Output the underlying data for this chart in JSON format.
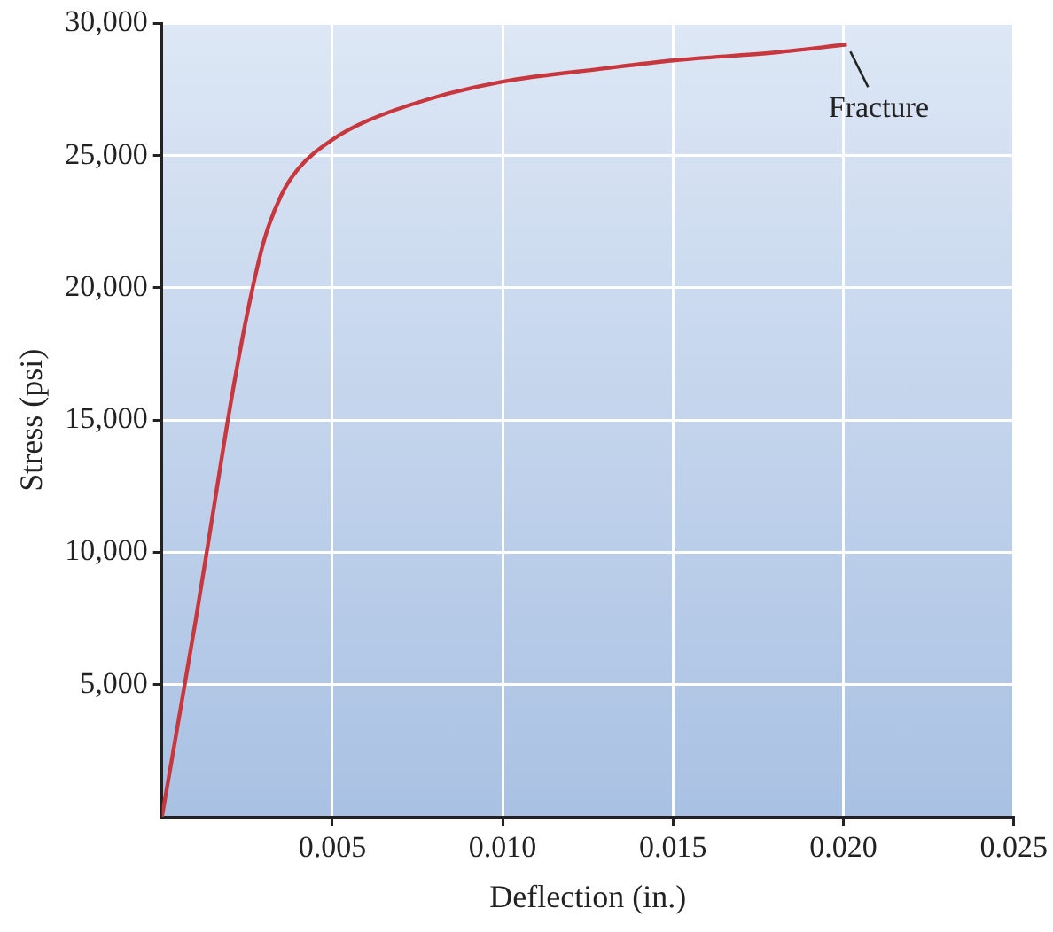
{
  "chart_data": {
    "type": "line",
    "xlabel": "Deflection (in.)",
    "ylabel": "Stress (psi)",
    "x": [
      0,
      0.001,
      0.0015,
      0.002,
      0.0025,
      0.003,
      0.0035,
      0.004,
      0.005,
      0.006,
      0.008,
      0.01,
      0.013,
      0.015,
      0.018,
      0.0201
    ],
    "series": [
      {
        "color": "#c8373d",
        "values": [
          0,
          7500,
          11500,
          15500,
          19000,
          21800,
          23500,
          24500,
          25600,
          26300,
          27200,
          27800,
          28300,
          28600,
          28900,
          29200
        ]
      }
    ],
    "xlim": [
      0,
      0.025
    ],
    "xticks": [
      0.005,
      {
        "value": 0.01,
        "label": "0.010"
      },
      0.015,
      {
        "value": 0.02,
        "label": "0.020"
      },
      0.025
    ],
    "ylim": [
      0,
      30000
    ],
    "yticks": [
      {
        "value": 5000,
        "label": "5,000"
      },
      {
        "value": 10000,
        "label": "10,000"
      },
      {
        "value": 15000,
        "label": "15,000"
      },
      {
        "value": 20000,
        "label": "20,000"
      },
      {
        "value": 25000,
        "label": "25,000"
      },
      {
        "value": 30000,
        "label": "30,000"
      }
    ],
    "grid": true,
    "marker": "none",
    "line_style": "solid",
    "legend": false,
    "annotations": [
      {
        "text": "Fracture",
        "x": 0.0201,
        "y": 29200
      }
    ]
  }
}
